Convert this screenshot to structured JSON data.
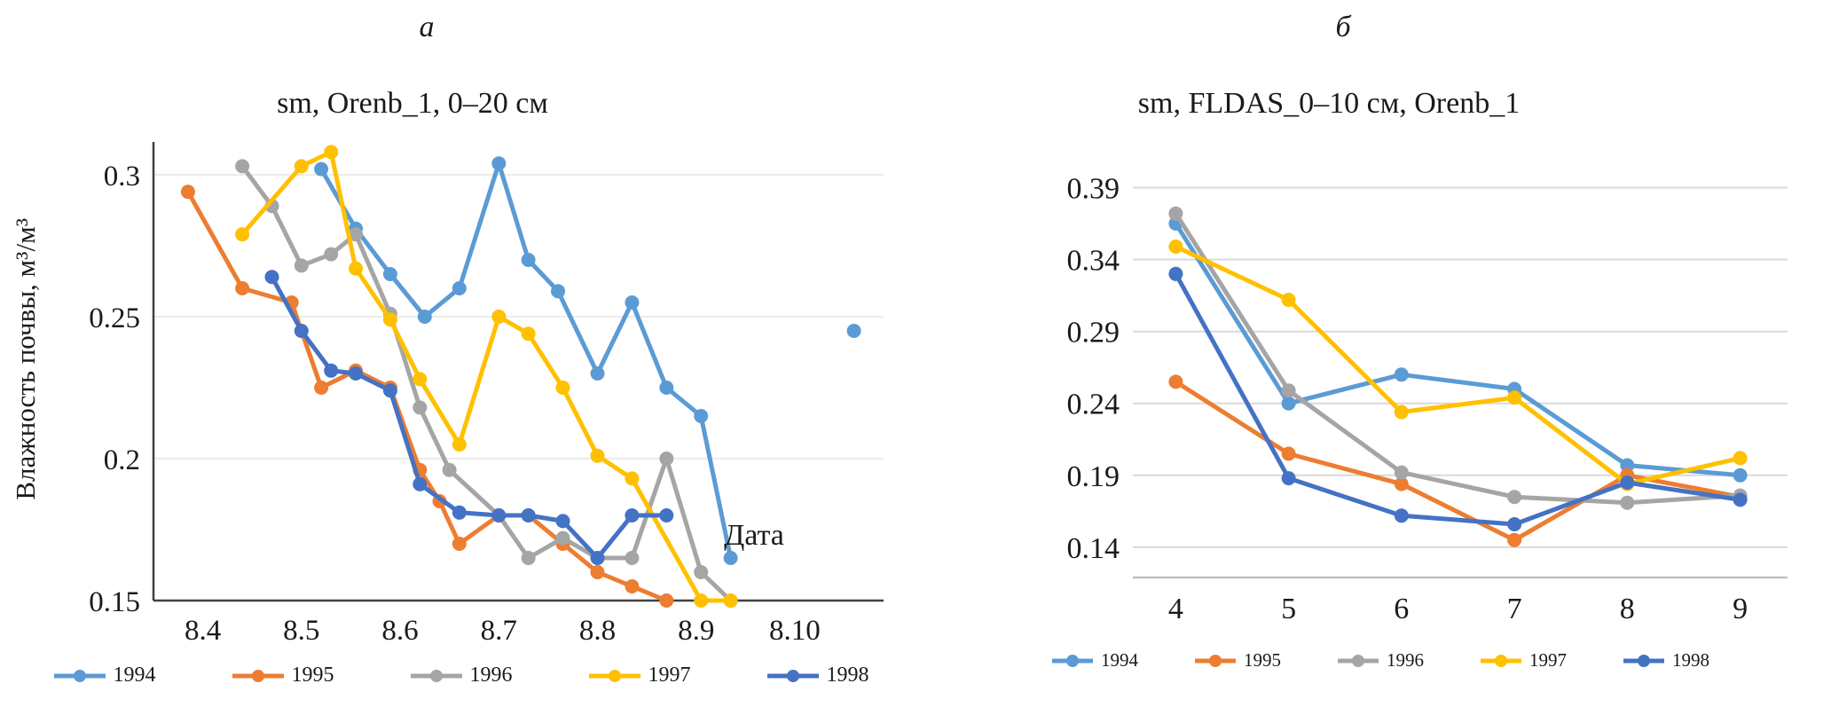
{
  "figure": {
    "background": "#ffffff",
    "description_visible_text_only": true
  },
  "chart_data": [
    {
      "type": "line",
      "panel_label": "а",
      "title": "sm, Orenb_1, 0–20 см",
      "ylabel": "Влажность почвы, м³/м³",
      "xlabel": "Дата",
      "legend_position": "bottom",
      "grid": "horizontal-light",
      "x_axis": {
        "tick_labels": [
          "8.4",
          "8.5",
          "8.6",
          "8.7",
          "8.8",
          "8.9",
          "8.10"
        ],
        "tick_positions": [
          0,
          1,
          2,
          3,
          4,
          5,
          6
        ],
        "lim": [
          -0.5,
          6.9
        ]
      },
      "y_axis": {
        "ticks": [
          0.15,
          0.2,
          0.25,
          0.3
        ],
        "tick_labels": [
          "0.15",
          "0.2",
          "0.25",
          "0.3"
        ],
        "lim": [
          0.15,
          0.315
        ]
      },
      "series": [
        {
          "name": "1994",
          "color": "#5B9BD5",
          "points": [
            [
              1.2,
              0.302
            ],
            [
              1.55,
              0.281
            ],
            [
              1.9,
              0.265
            ],
            [
              2.25,
              0.25
            ],
            [
              2.6,
              0.26
            ],
            [
              3.0,
              0.304
            ],
            [
              3.3,
              0.27
            ],
            [
              3.6,
              0.259
            ],
            [
              4.0,
              0.23
            ],
            [
              4.35,
              0.255
            ],
            [
              4.7,
              0.225
            ],
            [
              5.05,
              0.215
            ],
            [
              5.35,
              0.165
            ],
            null,
            [
              6.6,
              0.245
            ]
          ]
        },
        {
          "name": "1995",
          "color": "#ED7D31",
          "points": [
            [
              -0.15,
              0.294
            ],
            [
              0.4,
              0.26
            ],
            [
              0.9,
              0.255
            ],
            [
              1.2,
              0.225
            ],
            [
              1.55,
              0.231
            ],
            [
              1.9,
              0.225
            ],
            [
              2.2,
              0.196
            ],
            [
              2.4,
              0.185
            ],
            [
              2.6,
              0.17
            ],
            [
              3.0,
              0.18
            ],
            [
              3.3,
              0.18
            ],
            [
              3.65,
              0.17
            ],
            [
              4.0,
              0.16
            ],
            [
              4.35,
              0.155
            ],
            [
              4.7,
              0.15
            ]
          ]
        },
        {
          "name": "1996",
          "color": "#A5A5A5",
          "points": [
            [
              0.4,
              0.303
            ],
            [
              0.7,
              0.289
            ],
            [
              1.0,
              0.268
            ],
            [
              1.3,
              0.272
            ],
            [
              1.55,
              0.279
            ],
            [
              1.9,
              0.251
            ],
            [
              2.2,
              0.218
            ],
            [
              2.5,
              0.196
            ],
            [
              3.0,
              0.18
            ],
            [
              3.3,
              0.165
            ],
            [
              3.65,
              0.172
            ],
            [
              4.0,
              0.165
            ],
            [
              4.35,
              0.165
            ],
            [
              4.7,
              0.2
            ],
            [
              5.05,
              0.16
            ],
            [
              5.35,
              0.15
            ]
          ]
        },
        {
          "name": "1997",
          "color": "#FFC000",
          "points": [
            [
              0.4,
              0.279
            ],
            [
              1.0,
              0.303
            ],
            [
              1.3,
              0.308
            ],
            [
              1.55,
              0.267
            ],
            [
              1.9,
              0.249
            ],
            [
              2.2,
              0.228
            ],
            [
              2.6,
              0.205
            ],
            [
              3.0,
              0.25
            ],
            [
              3.3,
              0.244
            ],
            [
              3.65,
              0.225
            ],
            [
              4.0,
              0.201
            ],
            [
              4.35,
              0.193
            ],
            [
              5.05,
              0.15
            ],
            [
              5.35,
              0.15
            ]
          ]
        },
        {
          "name": "1998",
          "color": "#4472C4",
          "points": [
            [
              0.7,
              0.264
            ],
            [
              1.0,
              0.245
            ],
            [
              1.3,
              0.231
            ],
            [
              1.55,
              0.23
            ],
            [
              1.9,
              0.224
            ],
            [
              2.2,
              0.191
            ],
            [
              2.6,
              0.181
            ],
            [
              3.0,
              0.18
            ],
            [
              3.3,
              0.18
            ],
            [
              3.65,
              0.178
            ],
            [
              4.0,
              0.165
            ],
            [
              4.35,
              0.18
            ],
            [
              4.7,
              0.18
            ]
          ]
        }
      ]
    },
    {
      "type": "line",
      "panel_label": "б",
      "title": "sm, FLDAS_0–10 см, Orenb_1",
      "ylabel": "",
      "xlabel": "",
      "legend_position": "bottom",
      "grid": "horizontal-light",
      "x_axis": {
        "tick_labels": [
          "4",
          "5",
          "6",
          "7",
          "8",
          "9"
        ],
        "tick_positions": [
          4,
          5,
          6,
          7,
          8,
          9
        ],
        "lim": [
          3.62,
          9.42
        ]
      },
      "y_axis": {
        "ticks": [
          0.14,
          0.19,
          0.24,
          0.29,
          0.34,
          0.39
        ],
        "tick_labels": [
          "0.14",
          "0.19",
          "0.24",
          "0.29",
          "0.34",
          "0.39"
        ],
        "lim": [
          0.119,
          0.402
        ]
      },
      "series": [
        {
          "name": "1994",
          "color": "#5B9BD5",
          "points": [
            [
              4,
              0.365
            ],
            [
              5,
              0.24
            ],
            [
              6,
              0.26
            ],
            [
              7,
              0.25
            ],
            [
              8,
              0.197
            ],
            [
              9,
              0.19
            ]
          ]
        },
        {
          "name": "1995",
          "color": "#ED7D31",
          "points": [
            [
              4,
              0.255
            ],
            [
              5,
              0.205
            ],
            [
              6,
              0.184
            ],
            [
              7,
              0.145
            ],
            [
              8,
              0.19
            ],
            [
              9,
              0.175
            ]
          ]
        },
        {
          "name": "1996",
          "color": "#A5A5A5",
          "points": [
            [
              4,
              0.372
            ],
            [
              5,
              0.249
            ],
            [
              6,
              0.192
            ],
            [
              7,
              0.175
            ],
            [
              8,
              0.171
            ],
            [
              9,
              0.176
            ]
          ]
        },
        {
          "name": "1997",
          "color": "#FFC000",
          "points": [
            [
              4,
              0.349
            ],
            [
              5,
              0.312
            ],
            [
              6,
              0.234
            ],
            [
              7,
              0.244
            ],
            [
              8,
              0.184
            ],
            [
              9,
              0.202
            ]
          ]
        },
        {
          "name": "1998",
          "color": "#4472C4",
          "points": [
            [
              4,
              0.33
            ],
            [
              5,
              0.188
            ],
            [
              6,
              0.162
            ],
            [
              7,
              0.156
            ],
            [
              8,
              0.185
            ],
            [
              9,
              0.173
            ]
          ]
        }
      ]
    }
  ]
}
